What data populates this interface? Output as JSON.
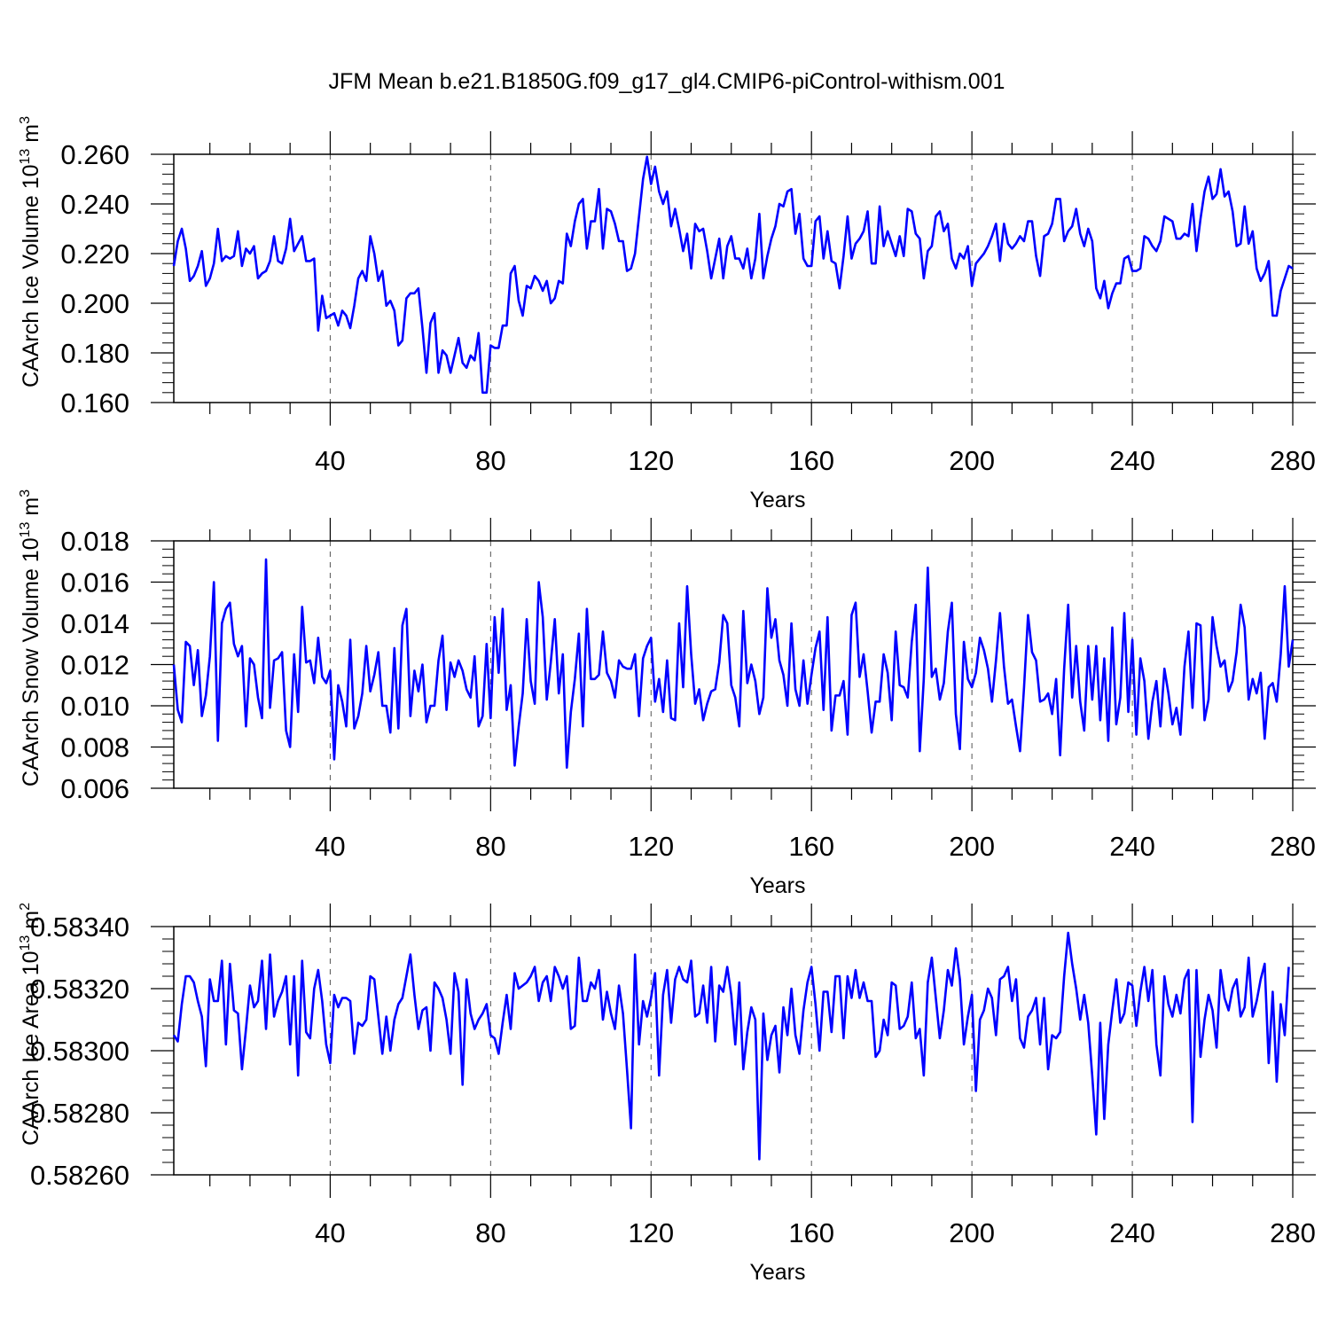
{
  "title": "JFM Mean b.e21.B1850G.f09_g17_gl4.CMIP6-piControl-withism.001",
  "chart_data": [
    {
      "type": "line",
      "ylabel": "CAArch Ice Volume 10",
      "ylabel_sup": "13",
      "ylabel_unit": " m",
      "ylabel_unit_sup": "3",
      "xlabel": "Years",
      "xlim": [
        1,
        280
      ],
      "ylim": [
        0.16,
        0.26
      ],
      "yticks": [
        "0.160",
        "0.180",
        "0.200",
        "0.220",
        "0.240",
        "0.260"
      ],
      "xticks": [
        "40",
        "80",
        "120",
        "160",
        "200",
        "240",
        "280"
      ],
      "line_color": "#0000ff",
      "values": [
        0.215,
        0.225,
        0.23,
        0.222,
        0.209,
        0.211,
        0.215,
        0.221,
        0.207,
        0.21,
        0.216,
        0.23,
        0.217,
        0.219,
        0.218,
        0.219,
        0.229,
        0.215,
        0.222,
        0.22,
        0.223,
        0.21,
        0.212,
        0.213,
        0.217,
        0.227,
        0.217,
        0.216,
        0.222,
        0.234,
        0.221,
        0.224,
        0.227,
        0.217,
        0.217,
        0.218,
        0.189,
        0.203,
        0.194,
        0.195,
        0.196,
        0.191,
        0.197,
        0.195,
        0.19,
        0.199,
        0.21,
        0.213,
        0.209,
        0.227,
        0.22,
        0.209,
        0.213,
        0.199,
        0.201,
        0.197,
        0.183,
        0.185,
        0.202,
        0.204,
        0.204,
        0.206,
        0.19,
        0.172,
        0.192,
        0.196,
        0.172,
        0.181,
        0.179,
        0.172,
        0.179,
        0.186,
        0.176,
        0.174,
        0.179,
        0.177,
        0.188,
        0.164,
        0.164,
        0.183,
        0.182,
        0.182,
        0.191,
        0.191,
        0.212,
        0.215,
        0.201,
        0.195,
        0.207,
        0.206,
        0.211,
        0.209,
        0.205,
        0.209,
        0.2,
        0.202,
        0.209,
        0.208,
        0.228,
        0.223,
        0.233,
        0.24,
        0.242,
        0.222,
        0.233,
        0.233,
        0.246,
        0.222,
        0.238,
        0.237,
        0.232,
        0.225,
        0.225,
        0.213,
        0.214,
        0.22,
        0.235,
        0.25,
        0.259,
        0.248,
        0.255,
        0.245,
        0.24,
        0.245,
        0.231,
        0.238,
        0.23,
        0.221,
        0.228,
        0.214,
        0.232,
        0.229,
        0.23,
        0.221,
        0.21,
        0.218,
        0.226,
        0.21,
        0.223,
        0.227,
        0.218,
        0.218,
        0.214,
        0.222,
        0.21,
        0.218,
        0.236,
        0.21,
        0.219,
        0.226,
        0.231,
        0.24,
        0.239,
        0.245,
        0.246,
        0.228,
        0.236,
        0.218,
        0.215,
        0.215,
        0.233,
        0.235,
        0.218,
        0.229,
        0.217,
        0.216,
        0.206,
        0.219,
        0.235,
        0.218,
        0.224,
        0.226,
        0.229,
        0.237,
        0.216,
        0.216,
        0.239,
        0.223,
        0.229,
        0.224,
        0.219,
        0.227,
        0.219,
        0.238,
        0.237,
        0.228,
        0.226,
        0.21,
        0.221,
        0.223,
        0.235,
        0.237,
        0.229,
        0.232,
        0.218,
        0.214,
        0.22,
        0.218,
        0.223,
        0.207,
        0.216,
        0.218,
        0.22,
        0.223,
        0.227,
        0.232,
        0.217,
        0.232,
        0.224,
        0.222,
        0.224,
        0.227,
        0.225,
        0.233,
        0.233,
        0.219,
        0.211,
        0.227,
        0.228,
        0.232,
        0.242,
        0.242,
        0.225,
        0.229,
        0.231,
        0.238,
        0.228,
        0.223,
        0.23,
        0.225,
        0.206,
        0.202,
        0.209,
        0.198,
        0.204,
        0.208,
        0.208,
        0.218,
        0.219,
        0.213,
        0.213,
        0.214,
        0.227,
        0.226,
        0.223,
        0.221,
        0.225,
        0.235,
        0.234,
        0.233,
        0.226,
        0.226,
        0.228,
        0.227,
        0.24,
        0.221,
        0.234,
        0.245,
        0.251,
        0.242,
        0.244,
        0.254,
        0.243,
        0.245,
        0.237,
        0.223,
        0.224,
        0.239,
        0.224,
        0.229,
        0.214,
        0.209,
        0.212,
        0.217,
        0.195,
        0.195,
        0.205,
        0.21,
        0.215,
        0.214
      ]
    },
    {
      "type": "line",
      "ylabel": "CAArch Snow Volume 10",
      "ylabel_sup": "13",
      "ylabel_unit": " m",
      "ylabel_unit_sup": "3",
      "xlabel": "Years",
      "xlim": [
        1,
        280
      ],
      "ylim": [
        0.006,
        0.018
      ],
      "yticks": [
        "0.006",
        "0.008",
        "0.010",
        "0.012",
        "0.014",
        "0.016",
        "0.018"
      ],
      "xticks": [
        "40",
        "80",
        "120",
        "160",
        "200",
        "240",
        "280"
      ],
      "line_color": "#0000ff",
      "values": [
        0.012,
        0.0098,
        0.0092,
        0.0131,
        0.0129,
        0.011,
        0.0127,
        0.0095,
        0.0105,
        0.0124,
        0.016,
        0.0083,
        0.014,
        0.0147,
        0.015,
        0.013,
        0.0124,
        0.0129,
        0.009,
        0.0123,
        0.012,
        0.0104,
        0.0094,
        0.0171,
        0.0099,
        0.0122,
        0.0123,
        0.0126,
        0.0088,
        0.008,
        0.0125,
        0.0097,
        0.0148,
        0.0121,
        0.0122,
        0.0111,
        0.0133,
        0.0114,
        0.0111,
        0.0117,
        0.0074,
        0.011,
        0.0102,
        0.009,
        0.0132,
        0.0089,
        0.0095,
        0.0106,
        0.0129,
        0.0107,
        0.0115,
        0.0126,
        0.01,
        0.01,
        0.0087,
        0.0128,
        0.0089,
        0.0139,
        0.0147,
        0.0095,
        0.0117,
        0.0107,
        0.012,
        0.0092,
        0.01,
        0.01,
        0.0122,
        0.0134,
        0.0098,
        0.0121,
        0.0114,
        0.0122,
        0.0117,
        0.0108,
        0.0104,
        0.0124,
        0.009,
        0.0095,
        0.013,
        0.0094,
        0.0143,
        0.0116,
        0.0147,
        0.0098,
        0.011,
        0.0071,
        0.009,
        0.0106,
        0.0142,
        0.0112,
        0.0101,
        0.016,
        0.0143,
        0.0103,
        0.0121,
        0.0142,
        0.0106,
        0.0125,
        0.007,
        0.0097,
        0.0113,
        0.0135,
        0.009,
        0.0147,
        0.0113,
        0.0113,
        0.0115,
        0.0136,
        0.0116,
        0.0112,
        0.0104,
        0.0122,
        0.0119,
        0.0118,
        0.0118,
        0.0125,
        0.0095,
        0.0123,
        0.0129,
        0.0133,
        0.0102,
        0.0113,
        0.0097,
        0.0122,
        0.0094,
        0.0093,
        0.014,
        0.0109,
        0.0158,
        0.0125,
        0.0101,
        0.0108,
        0.0093,
        0.0101,
        0.0107,
        0.0108,
        0.0121,
        0.0144,
        0.014,
        0.011,
        0.0104,
        0.009,
        0.0146,
        0.0111,
        0.012,
        0.0112,
        0.0096,
        0.0104,
        0.0157,
        0.0133,
        0.0142,
        0.0122,
        0.0115,
        0.01,
        0.014,
        0.0108,
        0.01,
        0.0122,
        0.0101,
        0.0115,
        0.0128,
        0.0136,
        0.0098,
        0.0143,
        0.0088,
        0.0105,
        0.0105,
        0.0112,
        0.0086,
        0.0144,
        0.015,
        0.0114,
        0.0125,
        0.0107,
        0.0087,
        0.0102,
        0.0102,
        0.0125,
        0.0116,
        0.0093,
        0.0136,
        0.011,
        0.0109,
        0.0104,
        0.0131,
        0.0149,
        0.0078,
        0.0113,
        0.0167,
        0.0114,
        0.0118,
        0.0103,
        0.0111,
        0.0136,
        0.015,
        0.0096,
        0.0079,
        0.0131,
        0.0113,
        0.0109,
        0.0116,
        0.0133,
        0.0127,
        0.0118,
        0.0102,
        0.0122,
        0.0145,
        0.0119,
        0.0101,
        0.0103,
        0.009,
        0.0078,
        0.0109,
        0.0144,
        0.0126,
        0.0122,
        0.0102,
        0.0103,
        0.0106,
        0.0096,
        0.0113,
        0.0076,
        0.0118,
        0.0149,
        0.0104,
        0.0129,
        0.0102,
        0.0088,
        0.0129,
        0.0103,
        0.0129,
        0.0093,
        0.0123,
        0.0083,
        0.0138,
        0.0091,
        0.0104,
        0.0145,
        0.0097,
        0.0132,
        0.0086,
        0.0123,
        0.0112,
        0.0084,
        0.0102,
        0.0112,
        0.009,
        0.0118,
        0.0106,
        0.0091,
        0.0099,
        0.0086,
        0.0119,
        0.0136,
        0.0099,
        0.014,
        0.0139,
        0.0093,
        0.0103,
        0.0143,
        0.0129,
        0.0119,
        0.0122,
        0.0107,
        0.0112,
        0.0126,
        0.0149,
        0.0138,
        0.0103,
        0.0113,
        0.0106,
        0.0116,
        0.0084,
        0.0109,
        0.0111,
        0.0102,
        0.0125,
        0.0158,
        0.0119,
        0.0132
      ]
    },
    {
      "type": "line",
      "ylabel": "CAArch Ice Area 10",
      "ylabel_sup": "13",
      "ylabel_unit": " m",
      "ylabel_unit_sup": "2",
      "xlabel": "Years",
      "xlim": [
        1,
        280
      ],
      "ylim": [
        0.5826,
        0.5834
      ],
      "yticks": [
        "0.58260",
        "0.58280",
        "0.58300",
        "0.58320",
        "0.58340"
      ],
      "xticks": [
        "40",
        "80",
        "120",
        "160",
        "200",
        "240",
        "280"
      ],
      "line_color": "#0000ff",
      "values": [
        0.58305,
        0.58303,
        0.58315,
        0.58324,
        0.58324,
        0.58322,
        0.58316,
        0.58311,
        0.58295,
        0.58323,
        0.58316,
        0.58316,
        0.58329,
        0.58302,
        0.58328,
        0.58313,
        0.58312,
        0.58294,
        0.58307,
        0.58321,
        0.58314,
        0.58316,
        0.58329,
        0.58307,
        0.58331,
        0.58311,
        0.58316,
        0.58319,
        0.58324,
        0.58302,
        0.58324,
        0.58292,
        0.58329,
        0.58306,
        0.58304,
        0.5832,
        0.58326,
        0.58316,
        0.58302,
        0.58296,
        0.58318,
        0.58314,
        0.58317,
        0.58317,
        0.58316,
        0.58299,
        0.58309,
        0.58308,
        0.5831,
        0.58324,
        0.58323,
        0.58311,
        0.58299,
        0.58311,
        0.583,
        0.5831,
        0.58315,
        0.58317,
        0.58324,
        0.58331,
        0.58318,
        0.58307,
        0.58313,
        0.58314,
        0.583,
        0.58322,
        0.5832,
        0.58317,
        0.5831,
        0.58299,
        0.58325,
        0.58319,
        0.58289,
        0.58323,
        0.58312,
        0.58307,
        0.5831,
        0.58312,
        0.58315,
        0.58305,
        0.58304,
        0.58299,
        0.58309,
        0.58318,
        0.58307,
        0.58325,
        0.5832,
        0.58321,
        0.58322,
        0.58324,
        0.58327,
        0.58316,
        0.58322,
        0.58324,
        0.58316,
        0.58327,
        0.58324,
        0.5832,
        0.58324,
        0.58307,
        0.58308,
        0.5833,
        0.58316,
        0.58316,
        0.58322,
        0.5832,
        0.58326,
        0.5831,
        0.58319,
        0.58312,
        0.58307,
        0.58321,
        0.58312,
        0.58294,
        0.58275,
        0.58331,
        0.58302,
        0.58316,
        0.58311,
        0.58317,
        0.58325,
        0.58292,
        0.58318,
        0.58326,
        0.58309,
        0.58323,
        0.58327,
        0.58323,
        0.58322,
        0.58329,
        0.58311,
        0.58312,
        0.58321,
        0.58309,
        0.58327,
        0.58303,
        0.58321,
        0.58319,
        0.58327,
        0.58318,
        0.58302,
        0.58322,
        0.58294,
        0.58306,
        0.58314,
        0.5831,
        0.58265,
        0.58312,
        0.58297,
        0.58305,
        0.58308,
        0.58293,
        0.58314,
        0.58305,
        0.5832,
        0.58305,
        0.58299,
        0.58313,
        0.58322,
        0.58327,
        0.58315,
        0.583,
        0.58319,
        0.58319,
        0.58306,
        0.58324,
        0.58324,
        0.58304,
        0.58324,
        0.58317,
        0.58326,
        0.58317,
        0.58322,
        0.58316,
        0.58316,
        0.58298,
        0.583,
        0.5831,
        0.58305,
        0.58322,
        0.58321,
        0.58307,
        0.58308,
        0.58311,
        0.58322,
        0.58304,
        0.58307,
        0.58292,
        0.58322,
        0.5833,
        0.58317,
        0.58304,
        0.58313,
        0.58326,
        0.58321,
        0.58333,
        0.58323,
        0.58302,
        0.58311,
        0.58318,
        0.58287,
        0.5831,
        0.58313,
        0.5832,
        0.58317,
        0.58305,
        0.58323,
        0.58324,
        0.58327,
        0.58316,
        0.58323,
        0.58304,
        0.58301,
        0.58311,
        0.58313,
        0.58317,
        0.58302,
        0.58317,
        0.58294,
        0.58305,
        0.58304,
        0.58306,
        0.58324,
        0.58338,
        0.58328,
        0.5832,
        0.5831,
        0.58318,
        0.58309,
        0.58292,
        0.58273,
        0.58309,
        0.58278,
        0.58302,
        0.58313,
        0.58323,
        0.58309,
        0.58312,
        0.58322,
        0.58321,
        0.58308,
        0.58319,
        0.58327,
        0.58316,
        0.58326,
        0.58302,
        0.58292,
        0.58324,
        0.58315,
        0.58311,
        0.58318,
        0.58312,
        0.58323,
        0.58326,
        0.58277,
        0.58326,
        0.58298,
        0.5831,
        0.58318,
        0.58313,
        0.58301,
        0.58326,
        0.58317,
        0.58313,
        0.5832,
        0.58323,
        0.58311,
        0.58314,
        0.5833,
        0.58311,
        0.58316,
        0.58323,
        0.58328,
        0.58296,
        0.58319,
        0.5829,
        0.58315,
        0.58305,
        0.58327
      ]
    }
  ]
}
